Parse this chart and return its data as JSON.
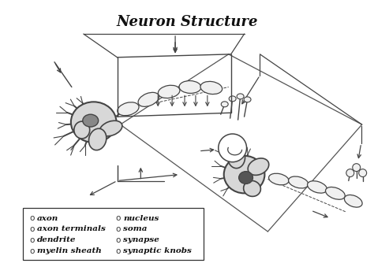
{
  "title": "Neuron Structure",
  "title_fontsize": 13,
  "title_fontstyle": "italic",
  "title_fontweight": "bold",
  "bg_color": "#ffffff",
  "line_color": "#444444",
  "soma_fill": "#d8d8d8",
  "nucleus_fill": "#666666",
  "myelin_fill": "#f0f0f0",
  "legend_items_left": [
    "axon",
    "axon terminals",
    "dendrite",
    "myelin sheath"
  ],
  "legend_items_right": [
    "nucleus",
    "soma",
    "synapse",
    "synaptic knobs"
  ],
  "legend_bullet": "o",
  "legend_fontsize": 7.5,
  "legend_fontstyle": "italic",
  "legend_fontweight": "bold"
}
